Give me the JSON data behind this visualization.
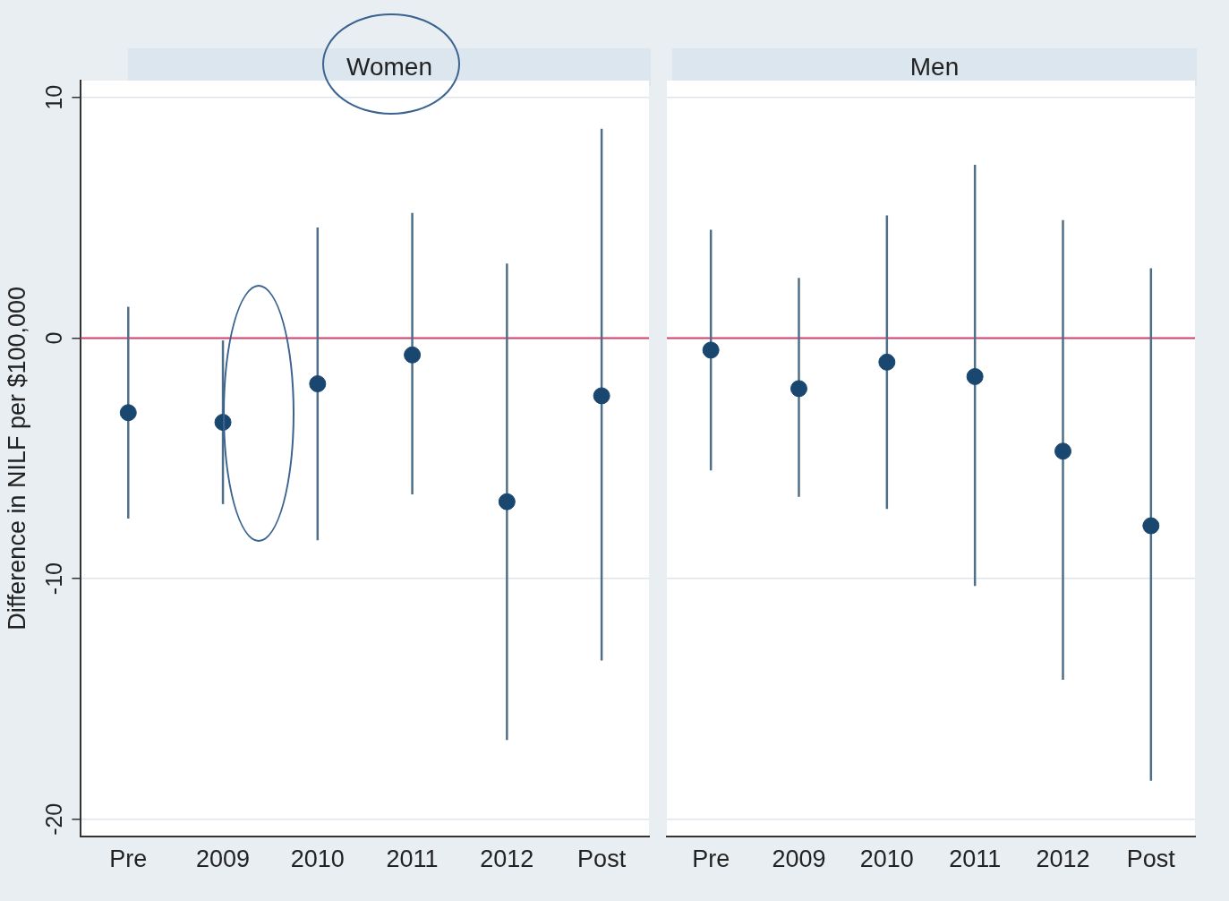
{
  "chart_data": [
    {
      "type": "scatter",
      "title": "Women",
      "ylabel": "Difference in NILF per $100,000",
      "categories": [
        "Pre",
        "2009",
        "2010",
        "2011",
        "2012",
        "Post"
      ],
      "values": [
        -3.1,
        -3.5,
        -1.9,
        -0.7,
        -6.8,
        -2.4
      ],
      "errors": [
        [
          -7.5,
          1.3
        ],
        [
          -6.9,
          -0.1
        ],
        [
          -8.4,
          4.6
        ],
        [
          -6.5,
          5.2
        ],
        [
          -16.7,
          3.1
        ],
        [
          -13.4,
          8.7
        ]
      ],
      "color": "#1a476f",
      "marker": "circle",
      "ylim": [
        -20.7,
        10.7
      ],
      "yticks": [
        -20,
        -10,
        0,
        10
      ],
      "grid": "y",
      "ref_lines": [
        {
          "axis": "y",
          "value": 0,
          "color": "#d2436a"
        }
      ]
    },
    {
      "type": "scatter",
      "title": "Men",
      "categories": [
        "Pre",
        "2009",
        "2010",
        "2011",
        "2012",
        "Post"
      ],
      "values": [
        -0.5,
        -2.1,
        -1.0,
        -1.6,
        -4.7,
        -7.8
      ],
      "errors": [
        [
          -5.5,
          4.5
        ],
        [
          -6.6,
          2.5
        ],
        [
          -7.1,
          5.1
        ],
        [
          -10.3,
          7.2
        ],
        [
          -14.2,
          4.9
        ],
        [
          -18.4,
          2.9
        ]
      ],
      "color": "#1a476f",
      "marker": "circle",
      "ylim": [
        -20.7,
        10.7
      ],
      "yticks": [
        -20,
        -10,
        0,
        10
      ],
      "grid": "y",
      "tick_labels": "x",
      "ref_lines": [
        {
          "axis": "y",
          "value": 0,
          "color": "#d2436a"
        }
      ]
    }
  ]
}
